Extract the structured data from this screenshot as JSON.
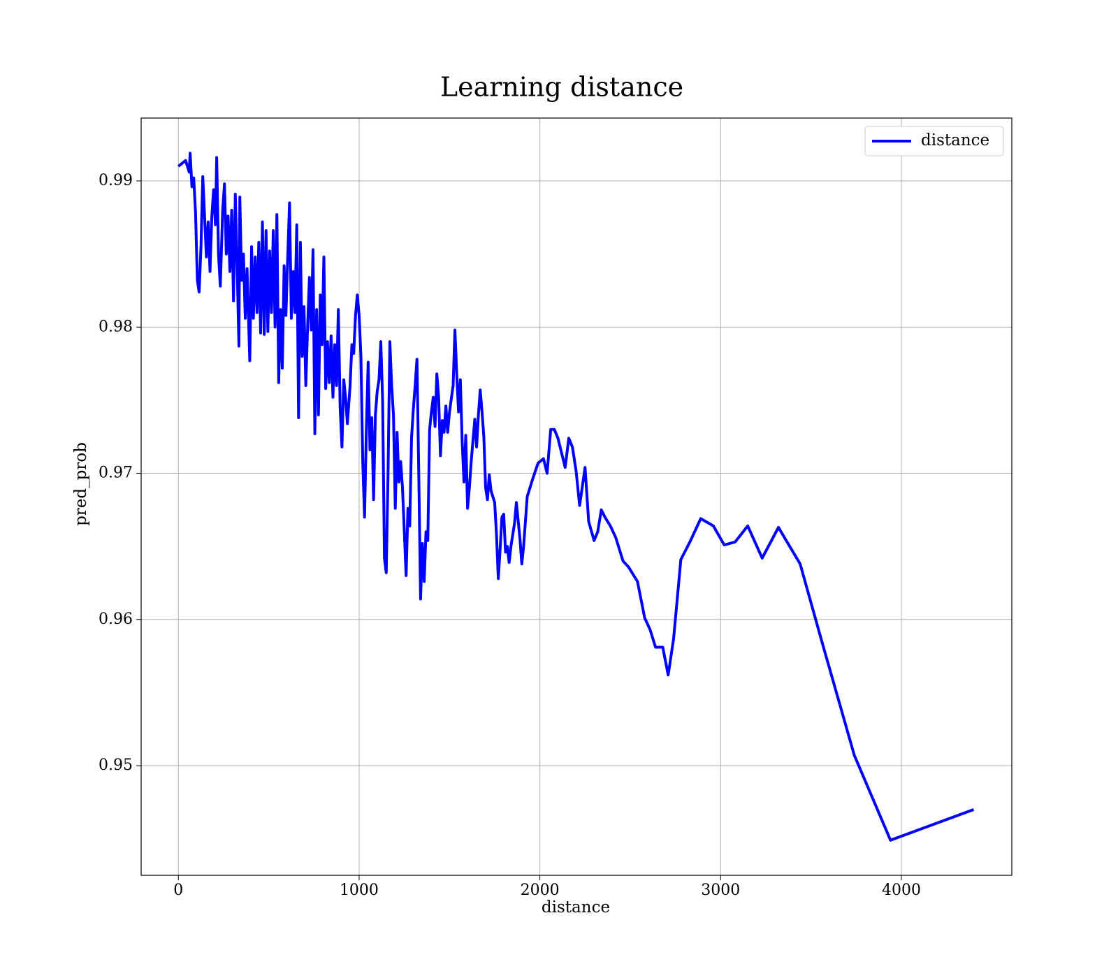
{
  "chart_data": {
    "type": "line",
    "title": "Learning distance",
    "x_label": "distance",
    "y_label": "pred_prob",
    "x": [
      0,
      40,
      60,
      65,
      75,
      85,
      95,
      105,
      115,
      125,
      135,
      145,
      155,
      165,
      175,
      185,
      195,
      205,
      212,
      222,
      232,
      245,
      255,
      265,
      275,
      285,
      295,
      305,
      315,
      325,
      335,
      340,
      350,
      360,
      370,
      380,
      395,
      405,
      415,
      425,
      435,
      445,
      455,
      465,
      475,
      485,
      495,
      505,
      515,
      525,
      535,
      545,
      555,
      565,
      575,
      585,
      595,
      605,
      615,
      625,
      635,
      645,
      655,
      665,
      675,
      685,
      695,
      705,
      715,
      725,
      735,
      745,
      755,
      765,
      775,
      785,
      795,
      805,
      815,
      825,
      835,
      845,
      855,
      865,
      875,
      885,
      895,
      905,
      915,
      925,
      935,
      950,
      960,
      970,
      980,
      990,
      1000,
      1010,
      1020,
      1030,
      1040,
      1050,
      1060,
      1070,
      1080,
      1090,
      1100,
      1110,
      1120,
      1130,
      1140,
      1150,
      1160,
      1170,
      1180,
      1190,
      1200,
      1210,
      1220,
      1230,
      1240,
      1250,
      1260,
      1270,
      1280,
      1290,
      1300,
      1310,
      1320,
      1330,
      1340,
      1350,
      1360,
      1370,
      1380,
      1390,
      1400,
      1410,
      1420,
      1430,
      1440,
      1450,
      1460,
      1470,
      1480,
      1490,
      1500,
      1520,
      1530,
      1540,
      1550,
      1560,
      1570,
      1580,
      1590,
      1600,
      1610,
      1620,
      1640,
      1650,
      1660,
      1670,
      1680,
      1690,
      1700,
      1710,
      1720,
      1730,
      1750,
      1760,
      1770,
      1780,
      1790,
      1800,
      1810,
      1820,
      1830,
      1840,
      1860,
      1870,
      1890,
      1900,
      1910,
      1930,
      1960,
      1990,
      2020,
      2040,
      2060,
      2080,
      2100,
      2120,
      2140,
      2160,
      2180,
      2200,
      2220,
      2250,
      2270,
      2300,
      2320,
      2340,
      2360,
      2390,
      2420,
      2460,
      2490,
      2540,
      2580,
      2610,
      2640,
      2680,
      2710,
      2740,
      2780,
      2830,
      2890,
      2960,
      3020,
      3080,
      3150,
      3230,
      3320,
      3440,
      3560,
      3740,
      3940,
      4400
    ],
    "series": [
      {
        "name": "distance",
        "color": "#0000ff",
        "values": [
          0.991,
          0.9914,
          0.9906,
          0.9919,
          0.9896,
          0.9902,
          0.9878,
          0.9832,
          0.9824,
          0.9855,
          0.9903,
          0.9876,
          0.9848,
          0.9872,
          0.9838,
          0.9876,
          0.9894,
          0.987,
          0.9916,
          0.985,
          0.9828,
          0.988,
          0.9898,
          0.985,
          0.9876,
          0.9838,
          0.988,
          0.9818,
          0.9891,
          0.9842,
          0.9787,
          0.9889,
          0.9832,
          0.985,
          0.9806,
          0.984,
          0.9777,
          0.9855,
          0.9806,
          0.9848,
          0.981,
          0.9858,
          0.9796,
          0.9872,
          0.9795,
          0.9866,
          0.9797,
          0.9852,
          0.981,
          0.9866,
          0.98,
          0.9877,
          0.9762,
          0.9812,
          0.9772,
          0.9842,
          0.9808,
          0.9848,
          0.9885,
          0.9806,
          0.9838,
          0.981,
          0.987,
          0.9738,
          0.9858,
          0.978,
          0.9814,
          0.976,
          0.98,
          0.9834,
          0.9798,
          0.9853,
          0.9727,
          0.9812,
          0.974,
          0.9822,
          0.9788,
          0.9848,
          0.9758,
          0.979,
          0.9762,
          0.9794,
          0.9752,
          0.9788,
          0.976,
          0.9812,
          0.9745,
          0.9718,
          0.9764,
          0.9752,
          0.9734,
          0.976,
          0.9788,
          0.9782,
          0.9808,
          0.9822,
          0.9808,
          0.978,
          0.9708,
          0.967,
          0.973,
          0.9776,
          0.9716,
          0.9738,
          0.9682,
          0.974,
          0.9756,
          0.9764,
          0.979,
          0.975,
          0.9642,
          0.9632,
          0.97,
          0.979,
          0.976,
          0.974,
          0.9676,
          0.9728,
          0.9694,
          0.9708,
          0.969,
          0.966,
          0.963,
          0.9676,
          0.9664,
          0.9724,
          0.9744,
          0.976,
          0.9778,
          0.97,
          0.9614,
          0.9652,
          0.9626,
          0.966,
          0.9654,
          0.973,
          0.9742,
          0.9752,
          0.9732,
          0.9768,
          0.9752,
          0.9712,
          0.9736,
          0.9728,
          0.9746,
          0.9728,
          0.9742,
          0.976,
          0.9798,
          0.9768,
          0.9742,
          0.9764,
          0.9722,
          0.9694,
          0.9726,
          0.9676,
          0.969,
          0.9708,
          0.9737,
          0.9718,
          0.974,
          0.9757,
          0.9742,
          0.9725,
          0.969,
          0.9682,
          0.9699,
          0.9688,
          0.968,
          0.9658,
          0.9628,
          0.9648,
          0.967,
          0.9672,
          0.9646,
          0.965,
          0.9639,
          0.965,
          0.9666,
          0.968,
          0.9655,
          0.9638,
          0.965,
          0.9684,
          0.9696,
          0.9707,
          0.971,
          0.97,
          0.973,
          0.973,
          0.9724,
          0.9714,
          0.9704,
          0.9724,
          0.9718,
          0.9702,
          0.9678,
          0.9704,
          0.9667,
          0.9654,
          0.966,
          0.9675,
          0.967,
          0.9664,
          0.9656,
          0.964,
          0.9636,
          0.9626,
          0.9601,
          0.9593,
          0.9581,
          0.9581,
          0.9562,
          0.9587,
          0.9641,
          0.9653,
          0.9669,
          0.9664,
          0.9651,
          0.9653,
          0.9664,
          0.9642,
          0.9663,
          0.9638,
          0.9585,
          0.9507,
          0.9449,
          0.947
        ]
      }
    ],
    "xlim": [
      -206,
      4611
    ],
    "ylim": [
      0.9425,
      0.9943
    ],
    "xticks": [
      0,
      1000,
      2000,
      3000,
      4000
    ],
    "yticks": [
      0.95,
      0.96,
      0.97,
      0.98,
      0.99
    ],
    "grid": true,
    "legend": "upper right"
  }
}
